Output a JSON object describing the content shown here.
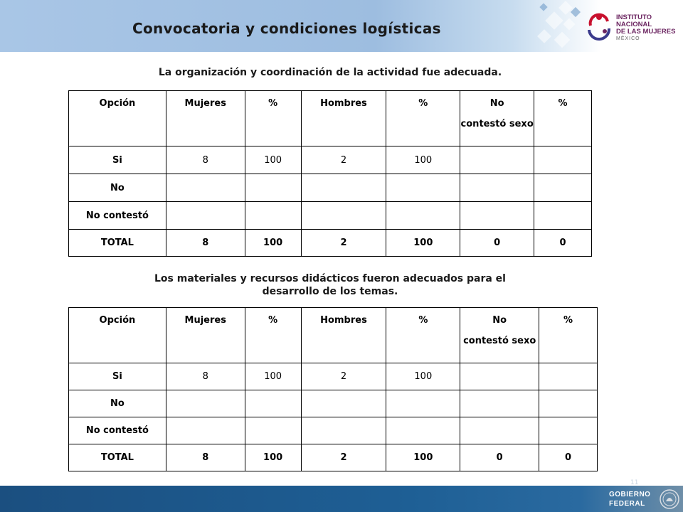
{
  "slide": {
    "title": "Convocatoria  y condiciones logísticas",
    "page_number": "11"
  },
  "logo": {
    "line1": "INSTITUTO NACIONAL",
    "line2": "DE LAS MUJERES",
    "line3": "MÉXICO"
  },
  "footer": {
    "line1": "Gobierno",
    "line2": "Federal"
  },
  "columns": [
    "Opción",
    "Mujeres",
    "%",
    "Hombres",
    "%",
    "No",
    "contestó sexo",
    "%"
  ],
  "table1": {
    "caption": "La organización y coordinación de la actividad fue adecuada.",
    "rows": [
      {
        "opcion": "Si",
        "mujeres": "8",
        "mujeres_pct": "100",
        "hombres": "2",
        "hombres_pct": "100",
        "no_contesto": "",
        "no_contesto_pct": ""
      },
      {
        "opcion": "No",
        "mujeres": "",
        "mujeres_pct": "",
        "hombres": "",
        "hombres_pct": "",
        "no_contesto": "",
        "no_contesto_pct": ""
      },
      {
        "opcion": "No contestó",
        "mujeres": "",
        "mujeres_pct": "",
        "hombres": "",
        "hombres_pct": "",
        "no_contesto": "",
        "no_contesto_pct": ""
      },
      {
        "opcion": "TOTAL",
        "mujeres": "8",
        "mujeres_pct": "100",
        "hombres": "2",
        "hombres_pct": "100",
        "no_contesto": "0",
        "no_contesto_pct": "0"
      }
    ]
  },
  "table2": {
    "caption_line1": "Los materiales y recursos didácticos fueron adecuados para el",
    "caption_line2": "desarrollo de los temas.",
    "rows": [
      {
        "opcion": "Si",
        "mujeres": "8",
        "mujeres_pct": "100",
        "hombres": "2",
        "hombres_pct": "100",
        "no_contesto": "",
        "no_contesto_pct": ""
      },
      {
        "opcion": "No",
        "mujeres": "",
        "mujeres_pct": "",
        "hombres": "",
        "hombres_pct": "",
        "no_contesto": "",
        "no_contesto_pct": ""
      },
      {
        "opcion": "No contestó",
        "mujeres": "",
        "mujeres_pct": "",
        "hombres": "",
        "hombres_pct": "",
        "no_contesto": "",
        "no_contesto_pct": ""
      },
      {
        "opcion": "TOTAL",
        "mujeres": "8",
        "mujeres_pct": "100",
        "hombres": "2",
        "hombres_pct": "100",
        "no_contesto": "0",
        "no_contesto_pct": "0"
      }
    ]
  }
}
